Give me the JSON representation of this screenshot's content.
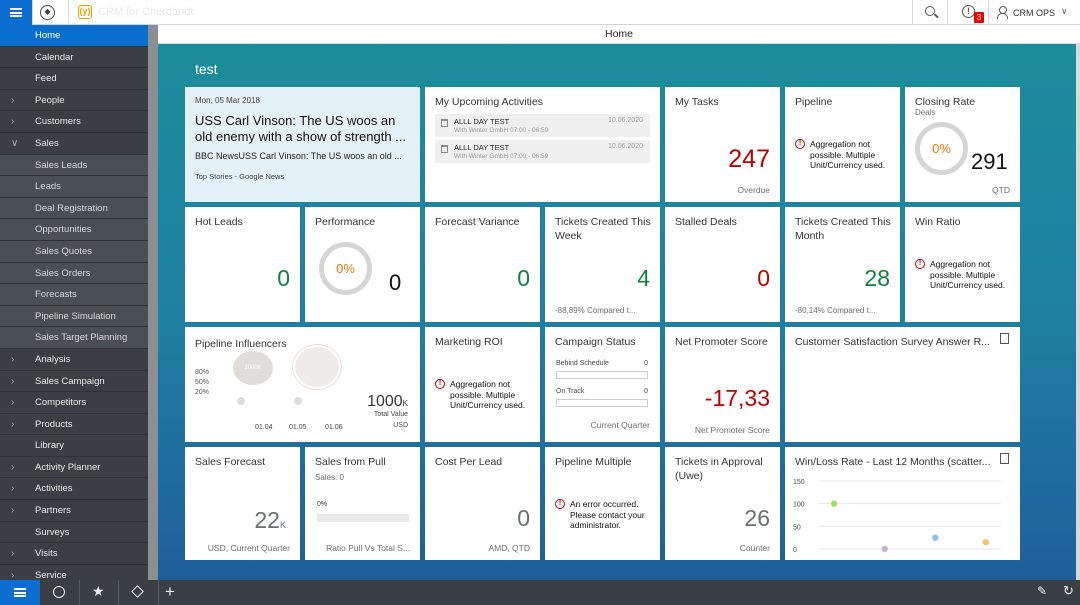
{
  "topbar": {
    "app_title": "CRM for Cherdandt",
    "user": "CRM OPS",
    "badge_count": "3",
    "caret": "∨",
    "logo_glyph": "(y)"
  },
  "sidebar": {
    "items": [
      {
        "label": "Home",
        "chev": "",
        "type": "active"
      },
      {
        "label": "Calendar",
        "chev": "",
        "type": "top"
      },
      {
        "label": "Feed",
        "chev": "",
        "type": "top"
      },
      {
        "label": "People",
        "chev": "›",
        "type": "top"
      },
      {
        "label": "Customers",
        "chev": "›",
        "type": "top"
      },
      {
        "label": "Sales",
        "chev": "∨",
        "type": "top"
      },
      {
        "label": "Sales Leads",
        "chev": "",
        "type": "sub"
      },
      {
        "label": "Leads",
        "chev": "",
        "type": "sub"
      },
      {
        "label": "Deal Registration",
        "chev": "",
        "type": "sub"
      },
      {
        "label": "Opportunities",
        "chev": "",
        "type": "sub"
      },
      {
        "label": "Sales Quotes",
        "chev": "",
        "type": "sub"
      },
      {
        "label": "Sales Orders",
        "chev": "",
        "type": "sub"
      },
      {
        "label": "Forecasts",
        "chev": "",
        "type": "sub"
      },
      {
        "label": "Pipeline Simulation",
        "chev": "",
        "type": "sub"
      },
      {
        "label": "Sales Target Planning",
        "chev": "",
        "type": "sub"
      },
      {
        "label": "Analysis",
        "chev": "›",
        "type": "top"
      },
      {
        "label": "Sales Campaign",
        "chev": "›",
        "type": "top"
      },
      {
        "label": "Competitors",
        "chev": "›",
        "type": "top"
      },
      {
        "label": "Products",
        "chev": "›",
        "type": "top"
      },
      {
        "label": "Library",
        "chev": "",
        "type": "top"
      },
      {
        "label": "Activity Planner",
        "chev": "›",
        "type": "top"
      },
      {
        "label": "Activities",
        "chev": "›",
        "type": "top"
      },
      {
        "label": "Partners",
        "chev": "›",
        "type": "top"
      },
      {
        "label": "Surveys",
        "chev": "",
        "type": "top"
      },
      {
        "label": "Visits",
        "chev": "›",
        "type": "top"
      },
      {
        "label": "Service",
        "chev": "›",
        "type": "top"
      }
    ]
  },
  "page": {
    "header": "Home",
    "group_title": "test"
  },
  "tiles": {
    "news": {
      "date": "Mon, 05 Mar 2018",
      "headline": "USS Carl Vinson: The US woos an old enemy with a show of strength ...",
      "snippet": "BBC NewsUSS Carl Vinson: The US woos an old ...",
      "source": "Top Stories - Google News"
    },
    "activities": {
      "title": "My Upcoming Activities",
      "items": [
        {
          "title": "ALLL DAY TEST",
          "sub": "With Winter GmbH 07:00 - 06:59",
          "date": "10.06.2020"
        },
        {
          "title": "ALLL DAY TEST",
          "sub": "With Winter GmbH 07:00 - 06:59",
          "date": "10.06.2020"
        }
      ]
    },
    "tasks": {
      "title": "My Tasks",
      "value": "247",
      "footer": "Overdue"
    },
    "pipeline": {
      "title": "Pipeline",
      "message": "Aggregation not possible. Multiple Unit/Currency used."
    },
    "closing": {
      "title": "Closing Rate",
      "subtitle": "Deals",
      "ring": "0%",
      "value": "291",
      "footer": "QTD"
    },
    "hot_leads": {
      "title": "Hot Leads",
      "value": "0"
    },
    "performance": {
      "title": "Performance",
      "ring": "0%",
      "value": "0"
    },
    "forecast_var": {
      "title": "Forecast Variance",
      "value": "0"
    },
    "tickets_week": {
      "title": "Tickets Created This Week",
      "value": "4",
      "footer": "-88,89% Compared t..."
    },
    "stalled": {
      "title": "Stalled Deals",
      "value": "0"
    },
    "tickets_month": {
      "title": "Tickets Created This Month",
      "value": "28",
      "footer": "-80,14% Compared t..."
    },
    "win_ratio": {
      "title": "Win Ratio",
      "message": "Aggregation not possible. Multiple Unit/Currency used."
    },
    "influencers": {
      "title": "Pipeline Influencers",
      "pcts": [
        "80%",
        "50%",
        "20%"
      ],
      "bubble": "1000K",
      "value": "1000",
      "unit": "K",
      "value_label": "Total Value",
      "currency": "USD",
      "x_labels": [
        "01.04",
        "01.05",
        "01.06"
      ]
    },
    "marketing": {
      "title": "Marketing ROI",
      "message": "Aggregation not possible. Multiple Unit/Currency used."
    },
    "campaign": {
      "title": "Campaign Status",
      "rows": [
        {
          "label": "Behind Schedule",
          "value": "0"
        },
        {
          "label": "On Track",
          "value": "0"
        }
      ],
      "footer": "Current Quarter"
    },
    "nps": {
      "title": "Net Promoter Score",
      "value": "-17,33",
      "footer": "Net Promoter Score"
    },
    "csat": {
      "title": "Customer Satisfaction Survey Answer R..."
    },
    "sales_forecast": {
      "title": "Sales Forecast",
      "value": "22",
      "unit": "K",
      "footer": "USD, Current Quarter"
    },
    "sales_pull": {
      "title": "Sales from Pull",
      "subtitle": "Sales: 0",
      "bar_label": "0%",
      "progress": 0,
      "footer": "Ratio Pull Vs Total S..."
    },
    "cost_lead": {
      "title": "Cost Per Lead",
      "value": "0",
      "footer": "AMD, QTD"
    },
    "pipe_mult": {
      "title": "Pipeline Multiple",
      "message": "An error occurred. Please contact your administrator."
    },
    "approval": {
      "title": "Tickets in Approval (Uwe)",
      "value": "26",
      "footer": "Counter"
    },
    "winloss": {
      "title": "Win/Loss Rate - Last 12 Months (scatter..."
    }
  },
  "chart_data": {
    "type": "scatter",
    "title": "Win/Loss Rate - Last 12 Months (scatter...",
    "y_ticks": [
      "150",
      "100",
      "50",
      "0"
    ],
    "ylim": [
      0,
      150
    ],
    "points": [
      {
        "x": 1,
        "y": 100,
        "color": "#a6d96a"
      },
      {
        "x": 2,
        "y": 0,
        "color": "#c8b5d8"
      },
      {
        "x": 3,
        "y": 25,
        "color": "#8fbfe8"
      },
      {
        "x": 4,
        "y": 15,
        "color": "#f2c36b"
      }
    ]
  },
  "colors": {
    "accent": "#0a6ed1",
    "positive": "#107e3e",
    "negative": "#bb0000",
    "ring": "#e9730c"
  }
}
